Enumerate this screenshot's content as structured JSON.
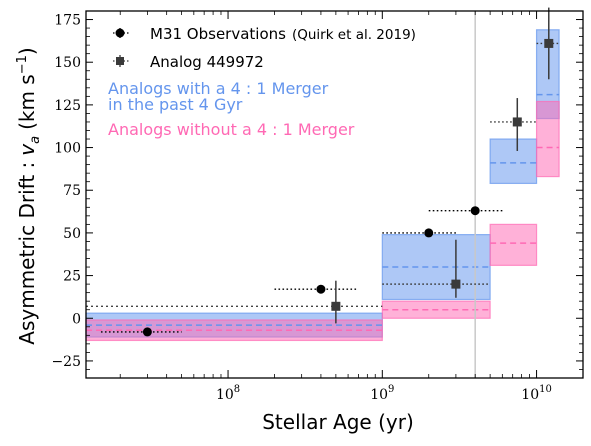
{
  "chart_data": {
    "type": "scatter",
    "xlabel_main": "Stellar Age",
    "xlabel_unit": "(yr)",
    "ylabel_main": "Asymmetric Drift :",
    "ylabel_var": "v",
    "ylabel_sub": "a",
    "ylabel_unit_open": "(km s",
    "ylabel_unit_exp": "−1",
    "ylabel_unit_close": ")",
    "xscale": "log",
    "xlim": [
      12000000,
      20000000000
    ],
    "ylim": [
      -35,
      180
    ],
    "x_ticks": [
      {
        "value": 100000000,
        "base": "10",
        "exp": "8"
      },
      {
        "value": 1000000000,
        "base": "10",
        "exp": "9"
      },
      {
        "value": 10000000000,
        "base": "10",
        "exp": "10"
      }
    ],
    "y_ticks": [
      -25,
      0,
      25,
      50,
      75,
      100,
      125,
      150,
      175
    ],
    "legend_position": "top-left",
    "legend": {
      "m31_label": "M31 Observations",
      "m31_citation": "(Quirk et al.  2019)",
      "analog_label": "Analog 449972"
    },
    "annotations": {
      "merger_line1": "Analogs with a 4 : 1 Merger",
      "merger_line2": "in the past 4 Gyr",
      "no_merger": "Analogs without a 4 : 1 Merger"
    },
    "colors": {
      "merger": "#6495ed",
      "no_merger": "#ff69b4",
      "observation": "#000000",
      "analog": "#3a3a3a",
      "vertical_line": "#c8c8c8"
    },
    "vertical_line_x": 4000000000,
    "reference_line_y": 7,
    "merger_bins": [
      {
        "x0": 12000000,
        "x1": 1000000000,
        "low": -11,
        "high": 3,
        "median": -4
      },
      {
        "x0": 1000000000,
        "x1": 5000000000,
        "low": 11,
        "high": 49,
        "median": 30
      },
      {
        "x0": 5000000000,
        "x1": 10000000000,
        "low": 79,
        "high": 105,
        "median": 91
      },
      {
        "x0": 10000000000,
        "x1": 14000000000,
        "low": 117,
        "high": 169,
        "median": 131
      }
    ],
    "no_merger_bins": [
      {
        "x0": 12000000,
        "x1": 1000000000,
        "low": -13,
        "high": -1,
        "median": -7
      },
      {
        "x0": 1000000000,
        "x1": 5000000000,
        "low": 0,
        "high": 10,
        "median": 5
      },
      {
        "x0": 5000000000,
        "x1": 10000000000,
        "low": 31,
        "high": 55,
        "median": 44
      },
      {
        "x0": 10000000000,
        "x1": 14000000000,
        "low": 83,
        "high": 127,
        "median": 100
      }
    ],
    "series": [
      {
        "name": "M31 Observations",
        "points": [
          {
            "x": 30000000,
            "y": -8,
            "xerr_low": 15000000,
            "xerr_high": 50000000,
            "yerr": 1.5
          },
          {
            "x": 400000000,
            "y": 17,
            "xerr_low": 200000000,
            "xerr_high": 700000000,
            "yerr": 2.5
          },
          {
            "x": 2000000000,
            "y": 50,
            "xerr_low": 1000000000,
            "xerr_high": 3000000000,
            "yerr": 1.5
          },
          {
            "x": 4000000000,
            "y": 63,
            "xerr_low": 2000000000,
            "xerr_high": 6000000000,
            "yerr": 1
          }
        ]
      },
      {
        "name": "Analog 449972",
        "points": [
          {
            "x": 500000000,
            "y": 7,
            "xerr_low": 500000000,
            "xerr_high": 500000000,
            "yerr_low": 10,
            "yerr_high": 15
          },
          {
            "x": 3000000000,
            "y": 20,
            "xerr_low": 1000000000,
            "xerr_high": 5000000000,
            "yerr_low": 8,
            "yerr_high": 26
          },
          {
            "x": 7500000000,
            "y": 115,
            "xerr_low": 5000000000,
            "xerr_high": 10000000000,
            "yerr_low": 17,
            "yerr_high": 14
          },
          {
            "x": 12000000000,
            "y": 161,
            "xerr_low": 10000000000,
            "xerr_high": 14000000000,
            "yerr_low": 21,
            "yerr_high": 21
          }
        ]
      }
    ]
  }
}
